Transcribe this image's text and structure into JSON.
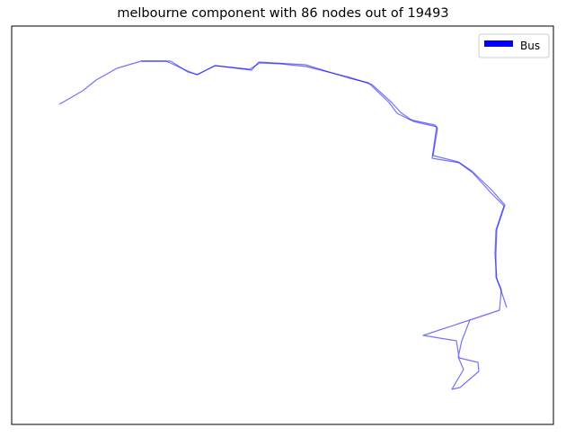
{
  "chart_data": {
    "type": "line",
    "title": "melbourne component with 86 nodes out of 19493",
    "xlabel": "",
    "ylabel": "",
    "ticks_visible": false,
    "grid": false,
    "legend": {
      "placement": "top-right",
      "entries": [
        {
          "label": "Bus",
          "color": "#0000ff"
        }
      ]
    },
    "series_color": "#0000ff",
    "series": [
      {
        "name": "Bus",
        "points": [
          [
            66,
            116
          ],
          [
            92,
            101
          ],
          [
            107,
            89
          ],
          [
            130,
            76
          ],
          [
            157,
            68
          ],
          [
            190,
            68
          ],
          [
            209,
            80
          ],
          [
            220,
            83
          ],
          [
            239,
            73
          ],
          [
            278,
            77
          ],
          [
            289,
            70
          ],
          [
            312,
            71
          ],
          [
            341,
            74
          ],
          [
            389,
            86
          ],
          [
            414,
            94
          ],
          [
            436,
            114
          ],
          [
            446,
            125
          ],
          [
            460,
            135
          ],
          [
            486,
            141
          ],
          [
            481,
            176
          ],
          [
            511,
            181
          ],
          [
            526,
            192
          ],
          [
            546,
            214
          ],
          [
            561,
            229
          ],
          [
            552,
            256
          ],
          [
            551,
            283
          ],
          [
            553,
            310
          ],
          [
            558,
            322
          ],
          [
            556,
            345
          ],
          [
            523,
            356
          ],
          [
            514,
            379
          ],
          [
            510,
            397
          ],
          [
            516,
            411
          ],
          [
            507,
            426
          ],
          [
            503,
            433
          ],
          [
            512,
            431
          ],
          [
            533,
            413
          ],
          [
            532,
            403
          ],
          [
            511,
            398
          ],
          [
            508,
            379
          ],
          [
            471,
            373
          ],
          [
            556,
            345
          ]
        ]
      },
      {
        "name": "",
        "points": [
          [
            157,
            68
          ],
          [
            185,
            68
          ],
          [
            209,
            79
          ],
          [
            219,
            83
          ],
          [
            240,
            73
          ],
          [
            280,
            78
          ],
          [
            288,
            69
          ],
          [
            340,
            72
          ],
          [
            389,
            87
          ],
          [
            410,
            92
          ],
          [
            433,
            114
          ],
          [
            442,
            126
          ],
          [
            456,
            133
          ],
          [
            484,
            139
          ],
          [
            487,
            143
          ],
          [
            482,
            173
          ],
          [
            510,
            180
          ],
          [
            525,
            190
          ],
          [
            547,
            211
          ],
          [
            562,
            228
          ],
          [
            553,
            255
          ],
          [
            552,
            282
          ],
          [
            552,
            308
          ],
          [
            557,
            321
          ],
          [
            564,
            342
          ]
        ]
      }
    ]
  }
}
